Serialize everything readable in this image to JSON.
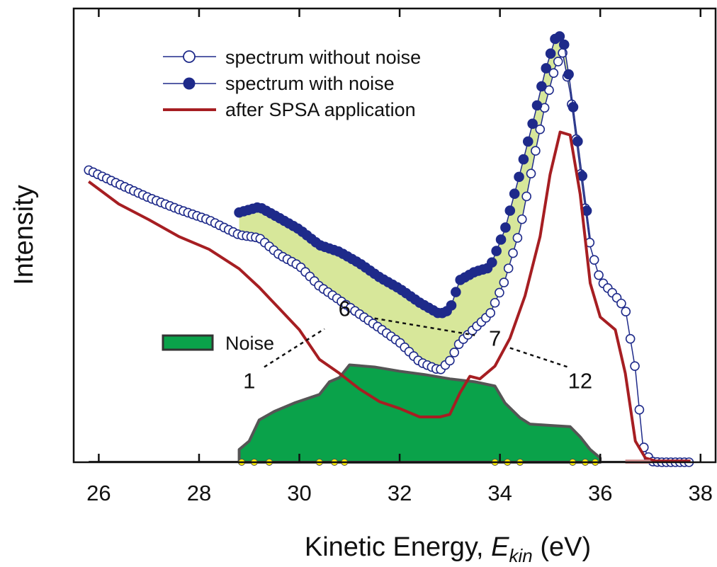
{
  "chart_data": {
    "type": "line",
    "xlabel": "Kinetic Energy, E_kin (eV)",
    "xlabel_parts": {
      "main": "Kinetic Energy, ",
      "var": "E",
      "sub": "kin",
      "unit": " (eV)"
    },
    "ylabel": "Intensity",
    "xlim": [
      25.5,
      38.3
    ],
    "x_ticks": [
      26,
      28,
      30,
      32,
      34,
      36,
      38
    ],
    "x_tick_labels": [
      "26",
      "28",
      "30",
      "32",
      "34",
      "36",
      "38"
    ],
    "y_ticks_labeled": false,
    "legend_position": "top-left",
    "legend": [
      {
        "key": "without",
        "label": "spectrum without noise",
        "marker": "open-circle",
        "color": "#1e2a8a"
      },
      {
        "key": "with",
        "label": "spectrum with noise",
        "marker": "filled-circle",
        "color": "#1e2a8a"
      },
      {
        "key": "spsa",
        "label": "after SPSA application",
        "marker": "line",
        "color": "#a61e22"
      }
    ],
    "noise_legend": {
      "label": "Noise",
      "color": "#0aa24a"
    },
    "colors": {
      "spectrum": "#1e2a8a",
      "spsa": "#a61e22",
      "noise_fill": "#0aa24a",
      "noise_edge": "#555555",
      "difference_fill": "#d7e79a",
      "background_marker": "#d08a8a",
      "point_marker": "#ffee00"
    },
    "series": [
      {
        "key": "without",
        "x": [
          25.8,
          26.4,
          27.0,
          27.6,
          28.2,
          28.8,
          29.2,
          29.6,
          30.0,
          30.4,
          30.8,
          31.2,
          31.6,
          32.0,
          32.4,
          32.8,
          33.0,
          33.2,
          33.5,
          33.8,
          34.1,
          34.4,
          34.7,
          34.9,
          35.1,
          35.25,
          35.4,
          35.6,
          35.8,
          36.0,
          36.3,
          36.5,
          36.7,
          36.85,
          37.0,
          37.2,
          37.5,
          37.8
        ],
        "y": [
          0.69,
          0.657,
          0.625,
          0.597,
          0.572,
          0.537,
          0.53,
          0.49,
          0.464,
          0.416,
          0.383,
          0.35,
          0.317,
          0.283,
          0.237,
          0.217,
          0.24,
          0.283,
          0.317,
          0.35,
          0.43,
          0.55,
          0.73,
          0.843,
          0.933,
          0.967,
          0.873,
          0.69,
          0.51,
          0.43,
          0.393,
          0.363,
          0.22,
          0.04,
          0.002,
          0.0,
          0.0,
          0.0
        ]
      },
      {
        "key": "with",
        "x": [
          28.8,
          29.2,
          29.6,
          30.0,
          30.4,
          30.8,
          31.2,
          31.6,
          32.0,
          32.4,
          32.8,
          33.0,
          33.2,
          33.5,
          33.8,
          34.1,
          34.4,
          34.7,
          34.9,
          35.1,
          35.25,
          35.4,
          35.6,
          35.8
        ],
        "y": [
          0.59,
          0.603,
          0.577,
          0.55,
          0.513,
          0.497,
          0.47,
          0.437,
          0.41,
          0.377,
          0.35,
          0.36,
          0.43,
          0.45,
          0.46,
          0.55,
          0.683,
          0.823,
          0.923,
          1.0,
          1.01,
          0.893,
          0.713,
          0.53
        ]
      },
      {
        "key": "spsa",
        "x": [
          25.8,
          26.4,
          27.0,
          27.6,
          28.2,
          28.8,
          29.2,
          29.6,
          30.0,
          30.4,
          30.8,
          31.2,
          31.6,
          32.0,
          32.4,
          32.8,
          33.0,
          33.2,
          33.4,
          33.6,
          33.9,
          34.2,
          34.5,
          34.8,
          35.0,
          35.2,
          35.4,
          35.6,
          35.8,
          36.0,
          36.3,
          36.5,
          36.7,
          36.9,
          37.1,
          37.5,
          37.8
        ],
        "y": [
          0.663,
          0.61,
          0.573,
          0.533,
          0.503,
          0.457,
          0.413,
          0.363,
          0.313,
          0.243,
          0.21,
          0.173,
          0.143,
          0.127,
          0.107,
          0.107,
          0.113,
          0.163,
          0.203,
          0.197,
          0.227,
          0.293,
          0.393,
          0.533,
          0.68,
          0.78,
          0.773,
          0.633,
          0.423,
          0.343,
          0.313,
          0.21,
          0.05,
          0.01,
          0.003,
          0.003,
          0.003
        ]
      },
      {
        "key": "noise",
        "x": [
          28.8,
          29.0,
          29.2,
          29.5,
          29.9,
          30.4,
          30.6,
          30.8,
          31.0,
          31.5,
          32.0,
          32.5,
          33.0,
          33.5,
          33.9,
          34.1,
          34.4,
          34.6,
          35.0,
          35.4,
          35.6,
          35.8,
          36.0
        ],
        "y": [
          0.03,
          0.05,
          0.1,
          0.12,
          0.14,
          0.16,
          0.19,
          0.2,
          0.23,
          0.225,
          0.215,
          0.207,
          0.197,
          0.19,
          0.18,
          0.14,
          0.105,
          0.09,
          0.087,
          0.084,
          0.06,
          0.03,
          0.01
        ]
      }
    ],
    "noise_points_x": [
      28.85,
      29.1,
      29.4,
      30.4,
      30.7,
      30.9,
      33.9,
      34.15,
      34.4,
      35.45,
      35.7,
      35.9
    ],
    "background_levels": [
      {
        "x": [
          36.5,
          37.0
        ],
        "y": 0.0,
        "series": "without"
      },
      {
        "x": [
          36.5,
          37.0
        ],
        "y": 0.0,
        "series": "spsa"
      }
    ],
    "annotations": [
      {
        "text": "1",
        "x": 29.0,
        "y": 0.175
      },
      {
        "text": "6",
        "x": 30.9,
        "y": 0.345
      },
      {
        "text": "7",
        "x": 33.9,
        "y": 0.275
      },
      {
        "text": "12",
        "x": 35.6,
        "y": 0.175
      }
    ],
    "dotted_guides": [
      {
        "from": [
          29.3,
          0.225
        ],
        "to": [
          30.5,
          0.315
        ]
      },
      {
        "from": [
          31.5,
          0.34
        ],
        "to": [
          33.5,
          0.3
        ]
      },
      {
        "from": [
          34.2,
          0.27
        ],
        "to": [
          35.35,
          0.225
        ]
      }
    ]
  }
}
